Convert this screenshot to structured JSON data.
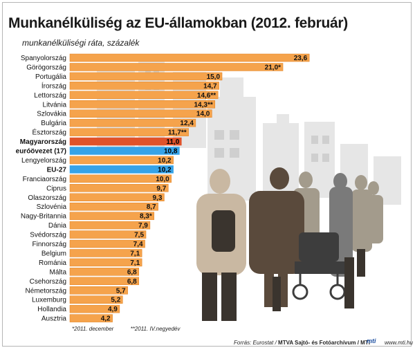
{
  "title": "Munkanélküliség az EU-államokban (2012. február)",
  "subtitle": "munkanélküliségi ráta, százalék",
  "footnotes": [
    "*2011. december",
    "**2011. IV.negyedév"
  ],
  "source": {
    "prefix": "Forrás: Eurostat / ",
    "credit": "MTVA Sajtó- és Fotóarchívum / MTI",
    "logo": "mti",
    "site": "www.mti.hu"
  },
  "colors": {
    "bar": "#f5a34c",
    "bar_edge": "#e07f1c",
    "highlight_hungary": "#e0522a",
    "highlight_eu": "#36a3e8"
  },
  "chart_data": {
    "type": "bar",
    "orientation": "horizontal",
    "xlim": [
      0,
      25
    ],
    "categories": [
      "Spanyolország",
      "Görögország",
      "Portugália",
      "Írország",
      "Lettország",
      "Litvánia",
      "Szlovákia",
      "Bulgária",
      "Észtország",
      "Magyarország",
      "euróövezet (17)",
      "Lengyelország",
      "EU-27",
      "Franciaország",
      "Ciprus",
      "Olaszország",
      "Szlovénia",
      "Nagy-Britannia",
      "Dánia",
      "Svédország",
      "Finnország",
      "Belgium",
      "Románia",
      "Málta",
      "Csehország",
      "Németország",
      "Luxemburg",
      "Hollandia",
      "Ausztria"
    ],
    "values": [
      23.6,
      21.0,
      15.0,
      14.7,
      14.6,
      14.3,
      14.0,
      12.4,
      11.7,
      11.0,
      10.8,
      10.2,
      10.2,
      10.0,
      9.7,
      9.3,
      8.7,
      8.3,
      7.9,
      7.5,
      7.4,
      7.1,
      7.1,
      6.8,
      6.8,
      5.7,
      5.2,
      4.9,
      4.2
    ],
    "value_labels": [
      "23,6",
      "21,0*",
      "15,0",
      "14,7",
      "14,6**",
      "14,3**",
      "14,0",
      "12,4",
      "11,7**",
      "11,0",
      "10,8",
      "10,2",
      "10,2",
      "10,0",
      "9,7",
      "9,3",
      "8,7",
      "8,3*",
      "7,9",
      "7,5",
      "7,4",
      "7,1",
      "7,1",
      "6,8",
      "6,8",
      "5,7",
      "5,2",
      "4,9",
      "4,2"
    ],
    "highlight": {
      "Magyarország": "hungary",
      "euróövezet (17)": "eu",
      "EU-27": "eu"
    },
    "bold_labels": [
      "Magyarország",
      "euróövezet (17)",
      "EU-27"
    ]
  }
}
